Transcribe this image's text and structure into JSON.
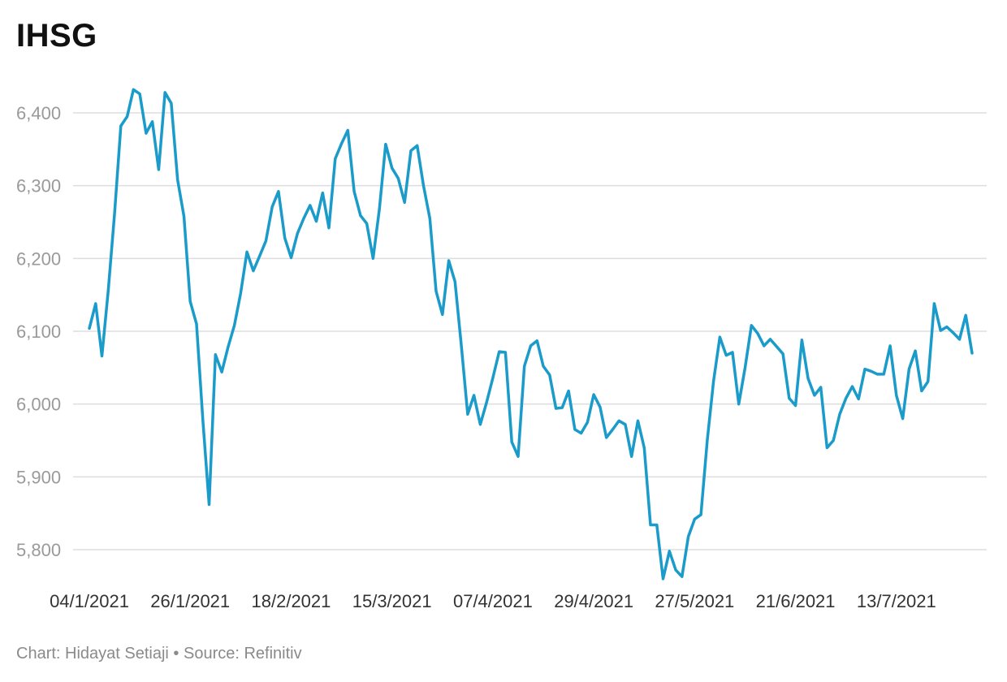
{
  "title": "IHSG",
  "footer": "Chart: Hidayat Setiaji • Source: Refinitiv",
  "colors": {
    "line": "#1a9bc9",
    "grid": "#dddddd",
    "y_tick": "#9a9a9a",
    "x_tick": "#333333"
  },
  "chart_data": {
    "type": "line",
    "title": "IHSG",
    "xlabel": "",
    "ylabel": "",
    "ylim": [
      5760,
      6440
    ],
    "grid": true,
    "y_ticks": [
      5800,
      5900,
      6000,
      6100,
      6200,
      6300,
      6400
    ],
    "y_tick_labels": [
      "5,800",
      "5,900",
      "6,000",
      "6,100",
      "6,200",
      "6,300",
      "6,400"
    ],
    "x_tick_labels": [
      "04/1/2021",
      "26/1/2021",
      "18/2/2021",
      "15/3/2021",
      "07/4/2021",
      "29/4/2021",
      "27/5/2021",
      "21/6/2021",
      "13/7/2021"
    ],
    "x_tick_index": [
      0,
      16,
      32,
      48,
      64,
      80,
      96,
      112,
      128
    ],
    "series": [
      {
        "values": [
          6104,
          6138,
          6066,
          6156,
          6262,
          6382,
          6395,
          6432,
          6426,
          6372,
          6388,
          6322,
          6428,
          6413,
          6308,
          6258,
          6141,
          6110,
          5978,
          5862,
          6068,
          6044,
          6078,
          6108,
          6152,
          6209,
          6183,
          6203,
          6224,
          6271,
          6292,
          6228,
          6201,
          6234,
          6255,
          6273,
          6251,
          6290,
          6242,
          6337,
          6358,
          6376,
          6292,
          6259,
          6248,
          6200,
          6268,
          6357,
          6324,
          6310,
          6277,
          6348,
          6355,
          6300,
          6255,
          6155,
          6123,
          6197,
          6168,
          6080,
          5986,
          6012,
          5972,
          6002,
          6036,
          6072,
          6071,
          5948,
          5928,
          6052,
          6080,
          6087,
          6052,
          6040,
          5994,
          5995,
          6018,
          5965,
          5960,
          5975,
          6013,
          5996,
          5954,
          5965,
          5977,
          5972,
          5928,
          5977,
          5940,
          5834,
          5834,
          5760,
          5798,
          5772,
          5763,
          5818,
          5842,
          5848,
          5950,
          6032,
          6092,
          6067,
          6071,
          6000,
          6050,
          6108,
          6097,
          6080,
          6089,
          6079,
          6069,
          6008,
          5998,
          6088,
          6035,
          6012,
          6023,
          5940,
          5950,
          5986,
          6008,
          6024,
          6007,
          6048,
          6045,
          6041,
          6041,
          6080,
          6012,
          5980,
          6048,
          6073,
          6018,
          6031,
          6138,
          6101,
          6106,
          6098,
          6089,
          6122,
          6070
        ]
      }
    ]
  }
}
